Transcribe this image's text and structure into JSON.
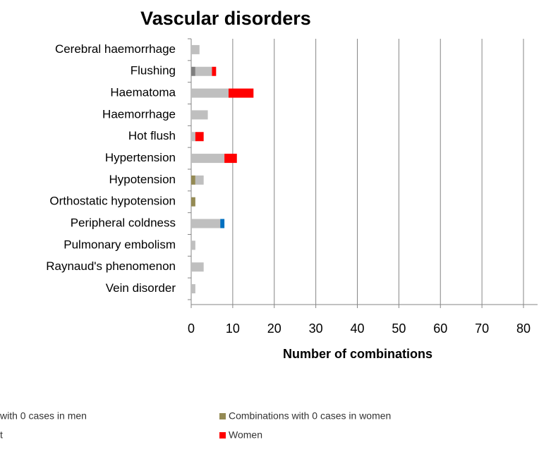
{
  "chart_data": {
    "type": "bar",
    "orientation": "horizontal",
    "stacked": true,
    "title": "Vascular disorders",
    "x_label": "Number of combinations",
    "categories": [
      "Cerebral haemorrhage",
      "Flushing",
      "Haematoma",
      "Haemorrhage",
      "Hot flush",
      "Hypertension",
      "Hypotension",
      "Orthostatic hypotension",
      "Peripheral coldness",
      "Pulmonary embolism",
      "Raynaud's phenomenon",
      "Vein disorder"
    ],
    "series": [
      {
        "name": "with 0 cases in men",
        "color": "#7f7f7f",
        "values": [
          0,
          1,
          0,
          0,
          0,
          0,
          0,
          0,
          0,
          0,
          0,
          0
        ]
      },
      {
        "name": "Combinations with 0 cases in women",
        "color": "#948a54",
        "values": [
          0,
          0,
          0,
          0,
          0,
          0,
          1,
          1,
          0,
          0,
          0,
          0
        ]
      },
      {
        "name": "t",
        "color": "#bfbfbf",
        "values": [
          2,
          4,
          9,
          4,
          1,
          8,
          2,
          0,
          7,
          1,
          3,
          1
        ]
      },
      {
        "name": "Women",
        "color": "#ff0000",
        "values": [
          0,
          1,
          6,
          0,
          2,
          3,
          0,
          0,
          0,
          0,
          0,
          0
        ]
      },
      {
        "color": "#0070c0",
        "values": [
          0,
          0,
          0,
          0,
          0,
          0,
          0,
          0,
          1,
          0,
          0,
          0
        ]
      }
    ],
    "xlim": [
      0,
      80
    ],
    "xticks": [
      0,
      10,
      20,
      30,
      40,
      50,
      60,
      70,
      80
    ],
    "grid": true
  }
}
